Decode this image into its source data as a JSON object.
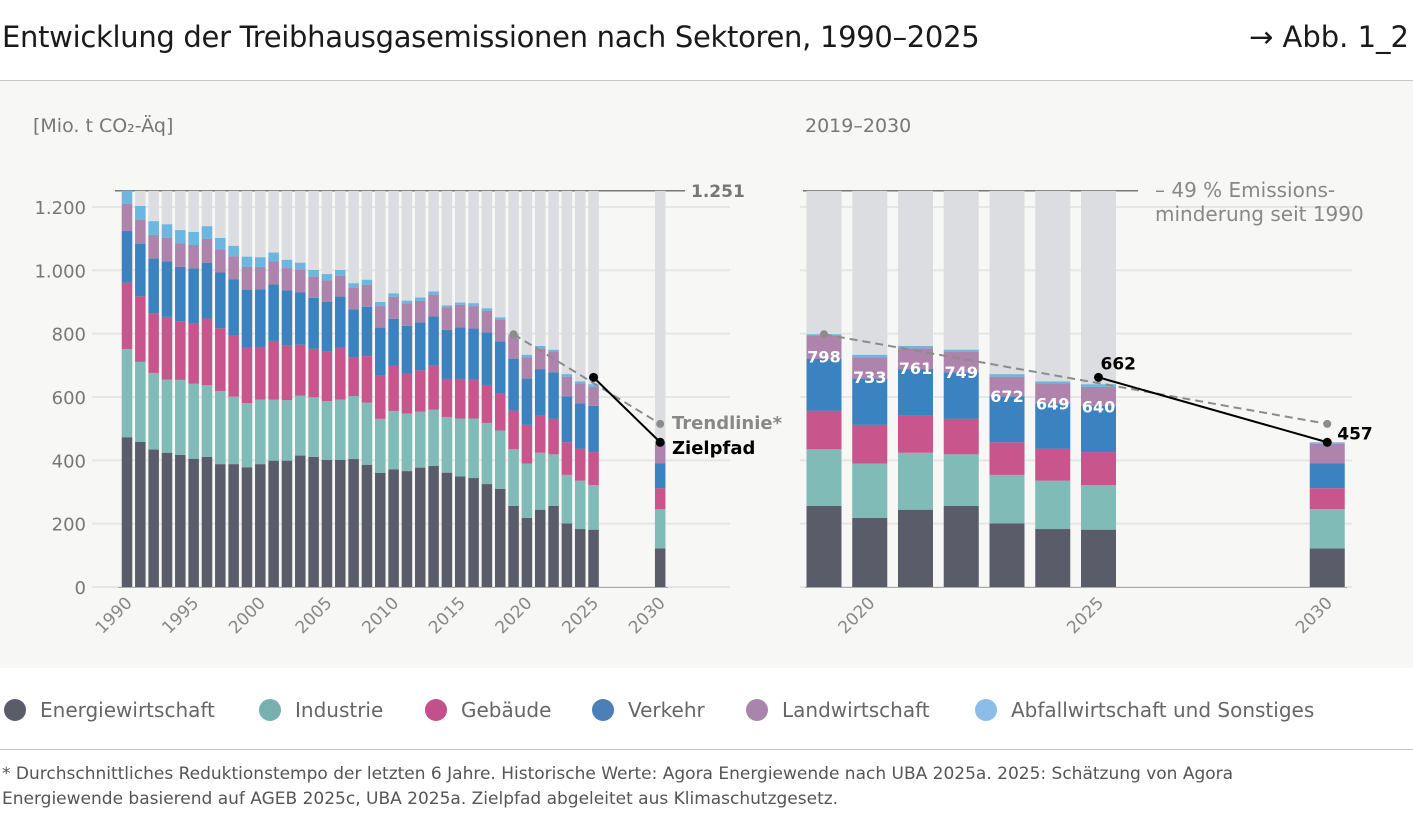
{
  "header": {
    "title": "Entwicklung der Treibhausgasemissionen nach Sektoren, 1990–2025",
    "figure_ref": "→ Abb. 1_2"
  },
  "footnote": {
    "line1": "* Durchschnittliches Reduktionstempo der letzten 6 Jahre. Historische Werte: Agora Energiewende nach UBA 2025a. 2025: Schätzung von Agora",
    "line2": "Energiewende basierend auf AGEB 2025c, UBA 2025a. Zielpfad abgeleitet aus Klimaschutzgesetz."
  },
  "chart_data": {
    "type": "bar",
    "stacked": true,
    "ylabel": "[Mio. t CO₂-Äq]",
    "ylim": [
      0,
      1251
    ],
    "yticks": [
      0,
      200,
      400,
      600,
      800,
      1000,
      1200
    ],
    "ytick_labels": [
      "0",
      "200",
      "400",
      "600",
      "800",
      "1.000",
      "1.200"
    ],
    "grid": true,
    "legend_placement": "bottom",
    "reference_total": 1251,
    "reference_label": "1.251",
    "left_panel": {
      "xtick_labels": [
        "1990",
        "1995",
        "2000",
        "2005",
        "2010",
        "2015",
        "2020",
        "2025",
        "2030"
      ]
    },
    "right_panel": {
      "title": "2019–2030",
      "years": [
        2019,
        2020,
        2021,
        2022,
        2023,
        2024,
        2025,
        2030
      ],
      "xtick_labels": [
        "2020",
        "2025",
        "2030"
      ],
      "total_labels": [
        "798",
        "733",
        "761",
        "749",
        "672",
        "649",
        "640"
      ],
      "annotation_line1": "– 49 % Emissions-",
      "annotation_line2": "minderung seit 1990"
    },
    "categories": [
      1990,
      1991,
      1992,
      1993,
      1994,
      1995,
      1996,
      1997,
      1998,
      1999,
      2000,
      2001,
      2002,
      2003,
      2004,
      2005,
      2006,
      2007,
      2008,
      2009,
      2010,
      2011,
      2012,
      2013,
      2014,
      2015,
      2016,
      2017,
      2018,
      2019,
      2020,
      2021,
      2022,
      2023,
      2024,
      2025,
      2030
    ],
    "series": [
      {
        "name": "Energiewirtschaft",
        "color": "#5b5c6a",
        "values": [
          473,
          458,
          434,
          424,
          417,
          405,
          411,
          388,
          388,
          378,
          388,
          399,
          399,
          415,
          411,
          401,
          401,
          404,
          386,
          360,
          371,
          366,
          377,
          382,
          361,
          349,
          344,
          325,
          310,
          256,
          218,
          244,
          256,
          201,
          183,
          181,
          122
        ]
      },
      {
        "name": "Industrie",
        "color": "#80bbb8",
        "values": [
          278,
          253,
          242,
          231,
          237,
          237,
          226,
          231,
          213,
          203,
          204,
          193,
          191,
          189,
          188,
          186,
          191,
          199,
          196,
          171,
          185,
          182,
          177,
          178,
          176,
          183,
          188,
          193,
          184,
          179,
          172,
          180,
          163,
          153,
          153,
          141,
          124
        ]
      },
      {
        "name": "Gebäude",
        "color": "#c8568d",
        "values": [
          210,
          207,
          188,
          198,
          185,
          189,
          211,
          198,
          192,
          174,
          166,
          185,
          173,
          161,
          153,
          157,
          164,
          122,
          147,
          136,
          142,
          126,
          130,
          139,
          120,
          125,
          122,
          120,
          116,
          122,
          122,
          119,
          112,
          103,
          101,
          104,
          66
        ]
      },
      {
        "name": "Verkehr",
        "color": "#3b82c0",
        "values": [
          163,
          166,
          173,
          175,
          172,
          175,
          176,
          176,
          178,
          184,
          182,
          178,
          174,
          165,
          161,
          157,
          161,
          152,
          156,
          152,
          149,
          151,
          151,
          155,
          155,
          163,
          162,
          166,
          165,
          164,
          146,
          145,
          147,
          145,
          143,
          146,
          78
        ]
      },
      {
        "name": "Landwirtschaft",
        "color": "#ae84ad",
        "values": [
          86,
          76,
          75,
          75,
          74,
          74,
          75,
          73,
          73,
          72,
          71,
          73,
          70,
          71,
          67,
          67,
          66,
          68,
          69,
          68,
          69,
          70,
          69,
          69,
          71,
          71,
          71,
          68,
          68,
          74,
          67,
          66,
          64,
          62,
          63,
          60,
          62
        ]
      },
      {
        "name": "Abfallwirtschaft und Sonstiges",
        "color": "#6cb6e0",
        "values": [
          41,
          43,
          43,
          42,
          42,
          41,
          40,
          36,
          33,
          32,
          30,
          28,
          26,
          23,
          21,
          20,
          18,
          14,
          16,
          13,
          11,
          9,
          10,
          10,
          6,
          7,
          9,
          8,
          8,
          3,
          8,
          7,
          7,
          8,
          6,
          8,
          5
        ]
      }
    ],
    "legend_colors": [
      "#5b5c6a",
      "#78b0ad",
      "#c2508a",
      "#4a7fb8",
      "#a985ad",
      "#8bbde8"
    ],
    "trendline": {
      "label": "Trendlinie*",
      "x": [
        2019,
        2030
      ],
      "y": [
        798,
        515
      ],
      "color": "#8c8c8c"
    },
    "target_path": {
      "label": "Zielpfad",
      "x": [
        2025,
        2030
      ],
      "y": [
        662,
        457
      ],
      "value_labels": [
        "662",
        "457"
      ],
      "color": "#000000"
    },
    "background_bar_color": "#dcdde0"
  }
}
